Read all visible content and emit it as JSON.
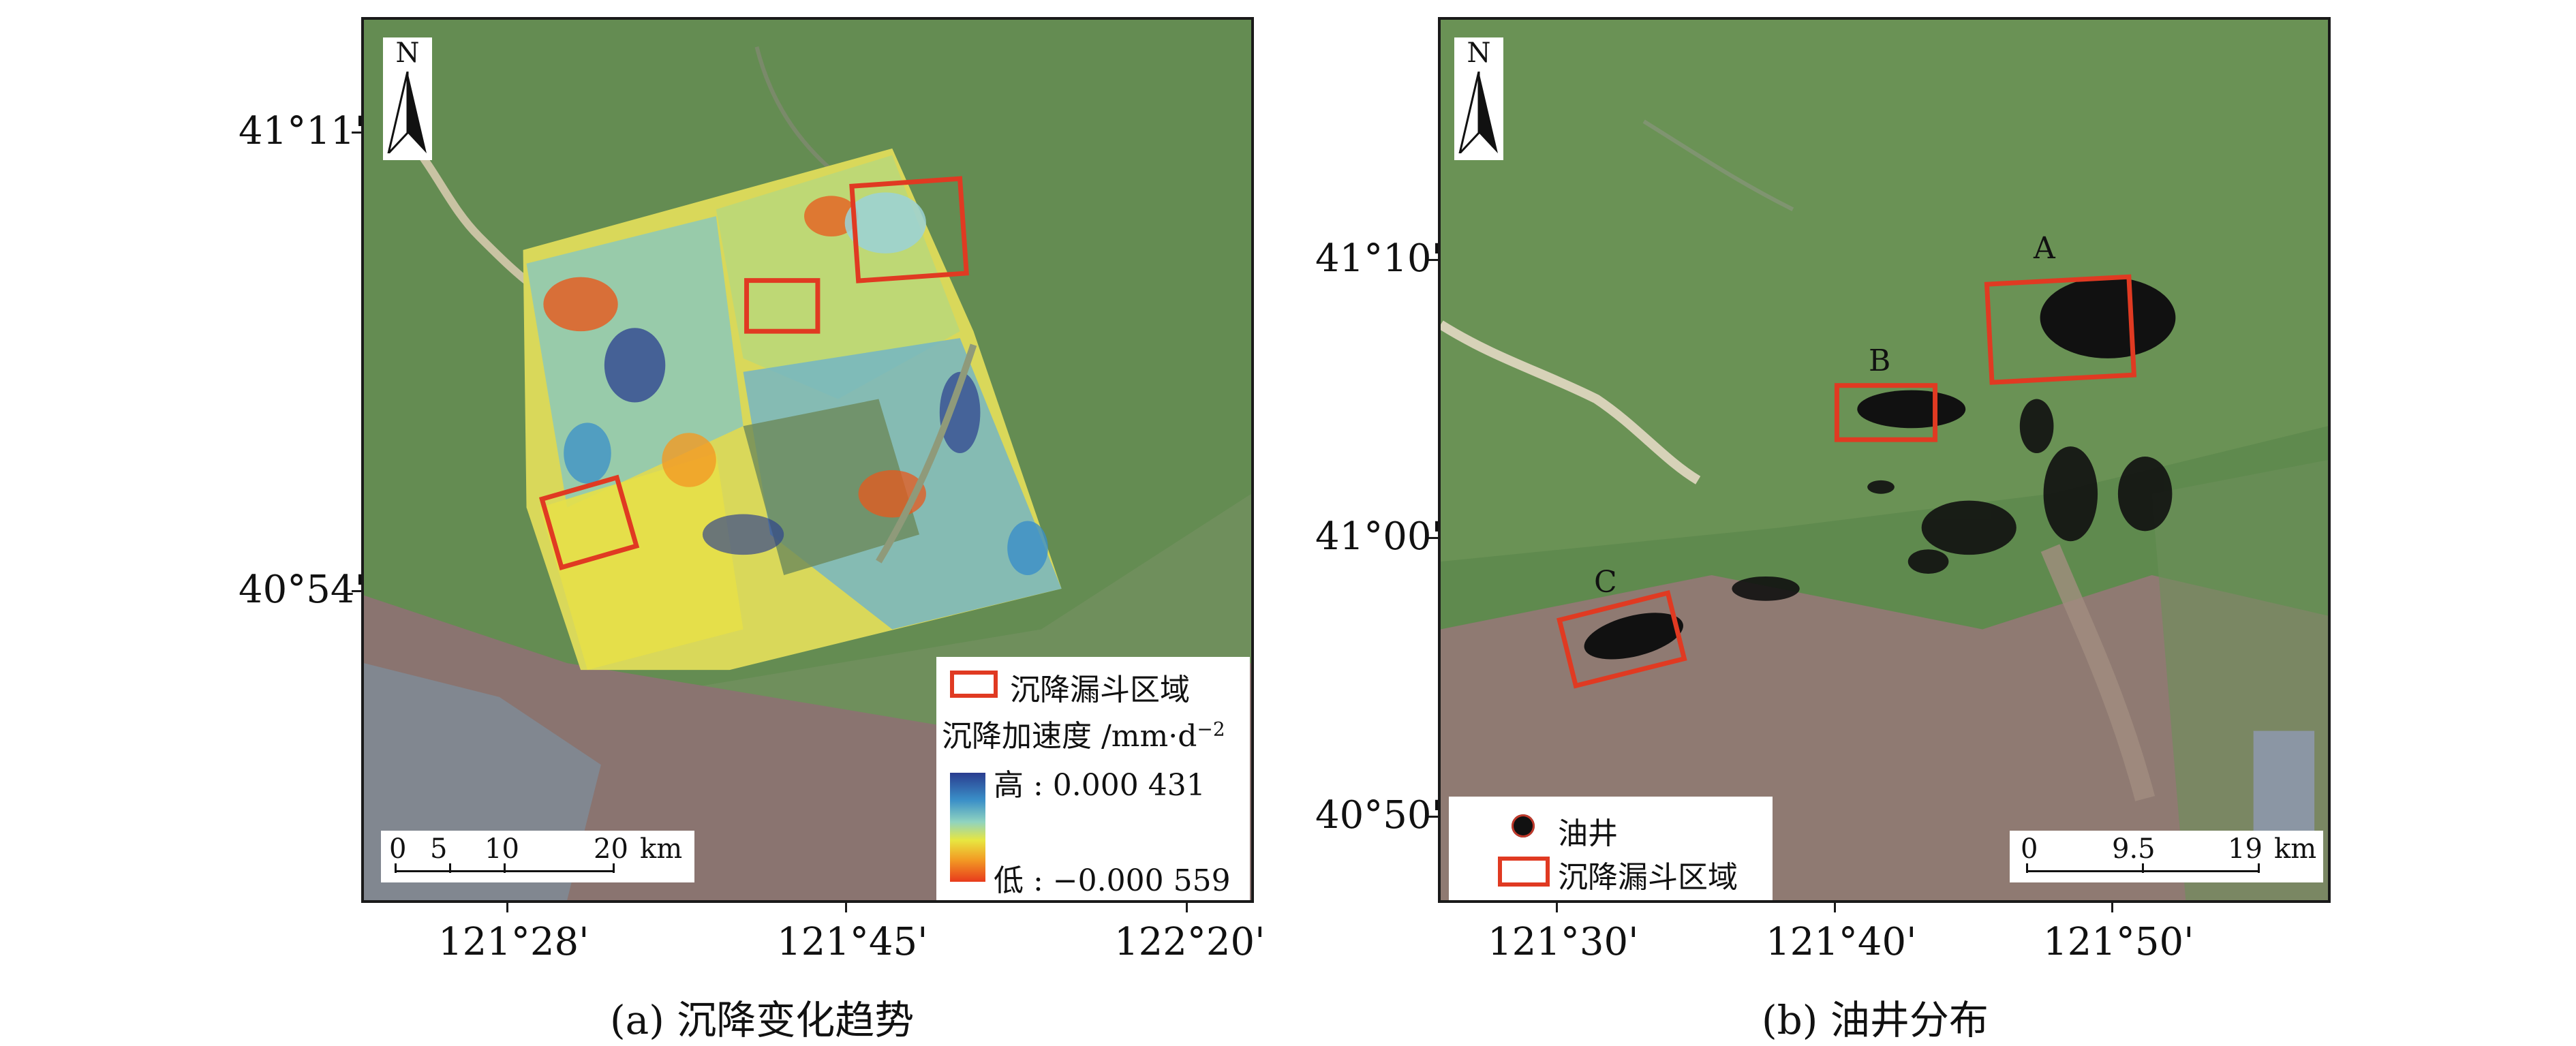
{
  "colors": {
    "subsidence_box": "#e03a22",
    "oil_well": "#111111",
    "ramp_high": "#2a3d8f",
    "ramp_low": "#e83a1c"
  },
  "panel_a": {
    "caption": "(a) 沉降变化趋势",
    "y_ticks": [
      "41°11'",
      "40°54'"
    ],
    "x_ticks": [
      "121°28'",
      "121°45'",
      "122°20'"
    ],
    "north_label": "N",
    "scalebar": {
      "labels": [
        "0",
        "5",
        "10",
        "20"
      ],
      "unit": "km"
    },
    "legend": {
      "box_label": "沉降漏斗区域",
      "ramp_title": "沉降加速度 /mm·d",
      "ramp_title_sup": "−2",
      "high_label": "高 : 0.000 431",
      "low_label": "低 : −0.000 559"
    }
  },
  "panel_b": {
    "caption": "(b) 油井分布",
    "y_ticks": [
      "41°10'",
      "41°00'",
      "40°50'"
    ],
    "x_ticks": [
      "121°30'",
      "121°40'",
      "121°50'"
    ],
    "north_label": "N",
    "box_labels": [
      "A",
      "B",
      "C"
    ],
    "scalebar": {
      "labels": [
        "0",
        "9.5",
        "19"
      ],
      "unit": "km"
    },
    "legend": {
      "well_label": "油井",
      "box_label": "沉降漏斗区域"
    }
  }
}
